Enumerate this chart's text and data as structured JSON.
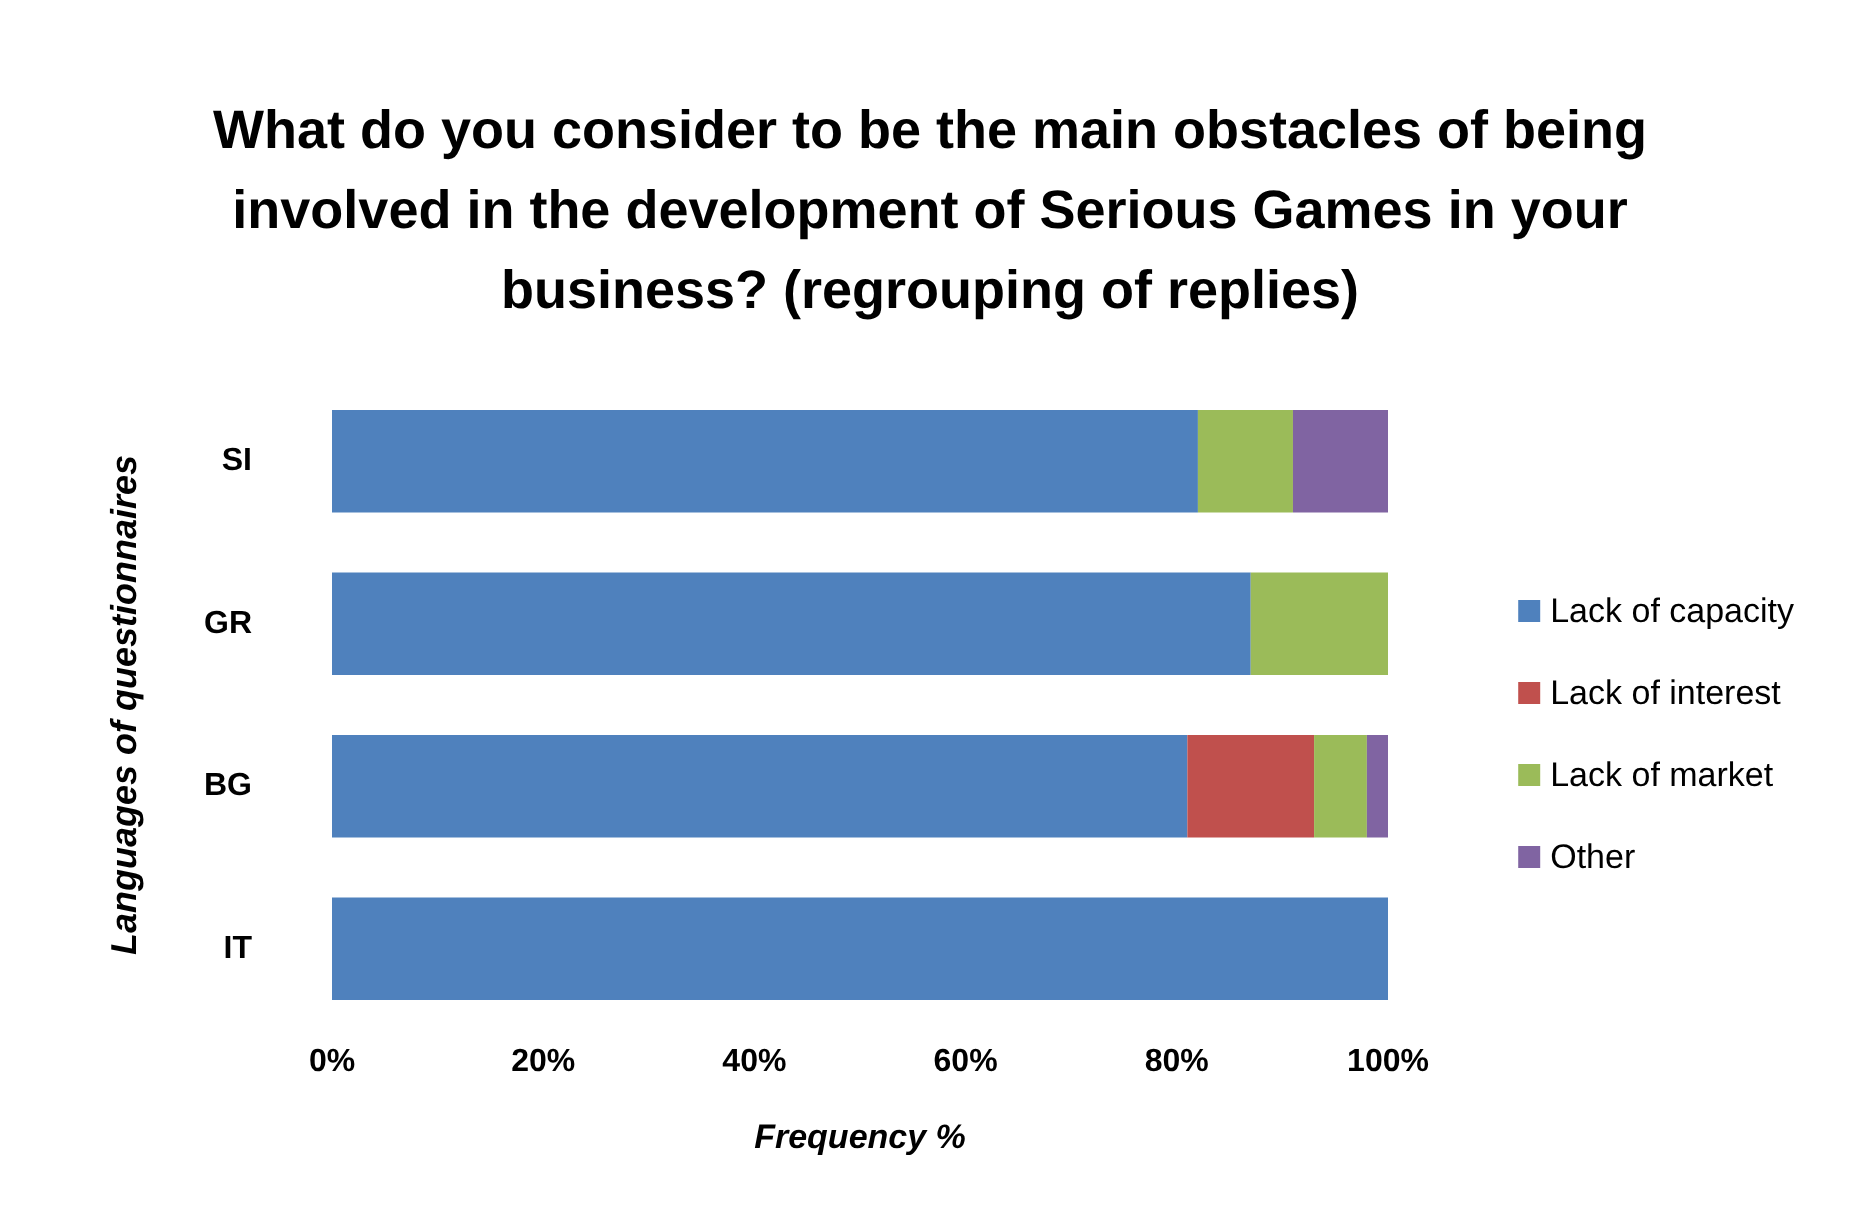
{
  "chart_data": {
    "type": "bar",
    "orientation": "horizontal",
    "stacked": true,
    "title": "What do you consider to be the main obstacles of being involved in the development of Serious Games in your business? (regrouping of replies)",
    "xlabel": "Frequency %",
    "ylabel": "Languages of questionnaires",
    "categories": [
      "SI",
      "GR",
      "BG",
      "IT"
    ],
    "series": [
      {
        "name": "Lack of capacity",
        "color": "#4f81bd",
        "values": [
          82,
          87,
          81,
          100
        ]
      },
      {
        "name": "Lack of interest",
        "color": "#c0504d",
        "values": [
          null,
          null,
          12,
          null
        ]
      },
      {
        "name": "Lack of market",
        "color": "#9bbb59",
        "values": [
          9,
          13,
          5,
          null
        ]
      },
      {
        "name": "Other",
        "color": "#8064a2",
        "values": [
          9,
          null,
          2,
          null
        ]
      }
    ],
    "xlim": [
      0,
      100
    ],
    "xticks": [
      {
        "value": 0,
        "label": "0%"
      },
      {
        "value": 20,
        "label": "20%"
      },
      {
        "value": 40,
        "label": "40%"
      },
      {
        "value": 60,
        "label": "60%"
      },
      {
        "value": 80,
        "label": "80%"
      },
      {
        "value": 100,
        "label": "100%"
      }
    ],
    "grid": false,
    "legend": "right"
  }
}
